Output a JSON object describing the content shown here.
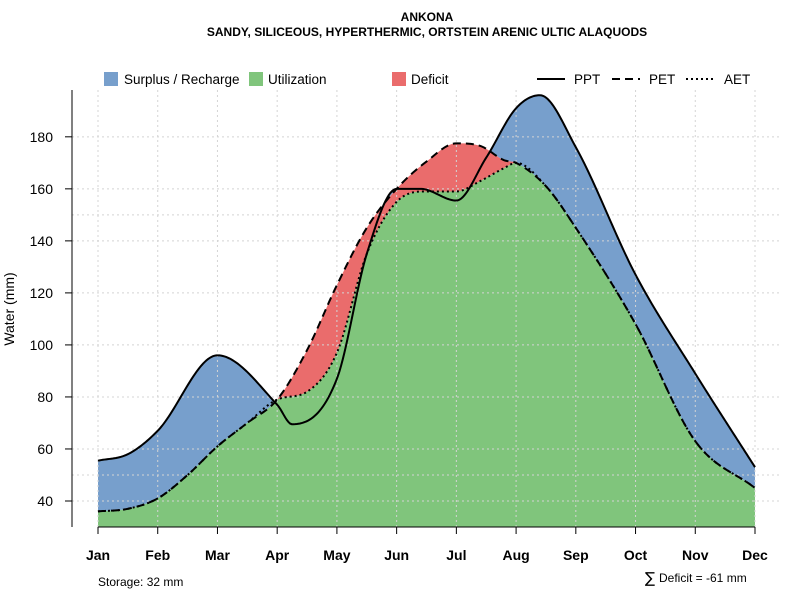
{
  "chart_data": {
    "type": "area",
    "title": "ANKONA",
    "subtitle": "SANDY, SILICEOUS, HYPERTHERMIC, ORTSTEIN ARENIC ULTIC ALAQUODS",
    "ylabel": "Water (mm)",
    "xlabel": "",
    "ylim": [
      30,
      198
    ],
    "yticks": [
      40,
      60,
      80,
      100,
      120,
      140,
      160,
      180
    ],
    "grid": true,
    "categories": [
      "Jan",
      "Feb",
      "Mar",
      "Apr",
      "May",
      "Jun",
      "Jul",
      "Aug",
      "Sep",
      "Oct",
      "Nov",
      "Dec"
    ],
    "series": [
      {
        "name": "PPT",
        "line_style": "solid",
        "x": [
          0,
          0.5,
          1,
          2,
          3,
          3.25,
          4,
          4.5,
          5,
          5.4,
          6,
          6.5,
          7,
          7.4,
          8,
          9,
          10,
          11
        ],
        "values": [
          55.5,
          58,
          67,
          96,
          77,
          69.5,
          87,
          135,
          160,
          160,
          155.5,
          172,
          191,
          196,
          176,
          127,
          89,
          53
        ]
      },
      {
        "name": "PET",
        "line_style": "dashed",
        "x": [
          0,
          0.5,
          1,
          1.5,
          2,
          2.5,
          3,
          3.5,
          4,
          4.5,
          5,
          5.5,
          6,
          6.4,
          6.8,
          7,
          7.5,
          8,
          9,
          10,
          11
        ],
        "values": [
          36,
          37,
          41,
          50,
          61,
          70,
          79,
          98,
          123,
          145,
          160,
          170.5,
          177.5,
          176.5,
          171,
          170,
          161,
          145,
          108,
          63,
          45
        ]
      },
      {
        "name": "AET",
        "line_style": "dotted",
        "x": [
          0,
          0.5,
          1,
          1.5,
          2,
          2.5,
          3,
          3.5,
          4,
          4.5,
          5,
          5.5,
          6,
          6.4,
          6.8,
          7,
          7.5,
          8,
          9,
          10,
          11
        ],
        "values": [
          36,
          37,
          41,
          50,
          61,
          70,
          79,
          82,
          97,
          135,
          155,
          159,
          159,
          163,
          168,
          170,
          161,
          145,
          108,
          63,
          45
        ]
      }
    ],
    "legend": [
      {
        "label": "Surplus / Recharge",
        "kind": "fill",
        "color": "#779fcc"
      },
      {
        "label": "Utilization",
        "kind": "fill",
        "color": "#80c57c"
      },
      {
        "label": "Deficit",
        "kind": "fill",
        "color": "#ea6c6c"
      },
      {
        "label": "PPT",
        "kind": "line",
        "line_style": "solid"
      },
      {
        "label": "PET",
        "kind": "line",
        "line_style": "dashed"
      },
      {
        "label": "AET",
        "kind": "line",
        "line_style": "dotted"
      }
    ],
    "annotations": {
      "storage": "Storage: 32 mm",
      "deficit": "Deficit = -61 mm",
      "deficit_symbol": "∑"
    },
    "colors": {
      "surplus": "#779fcc",
      "utilization": "#80c57c",
      "deficit": "#ea6c6c",
      "line": "#000000",
      "grid": "#d4d4d4"
    }
  }
}
